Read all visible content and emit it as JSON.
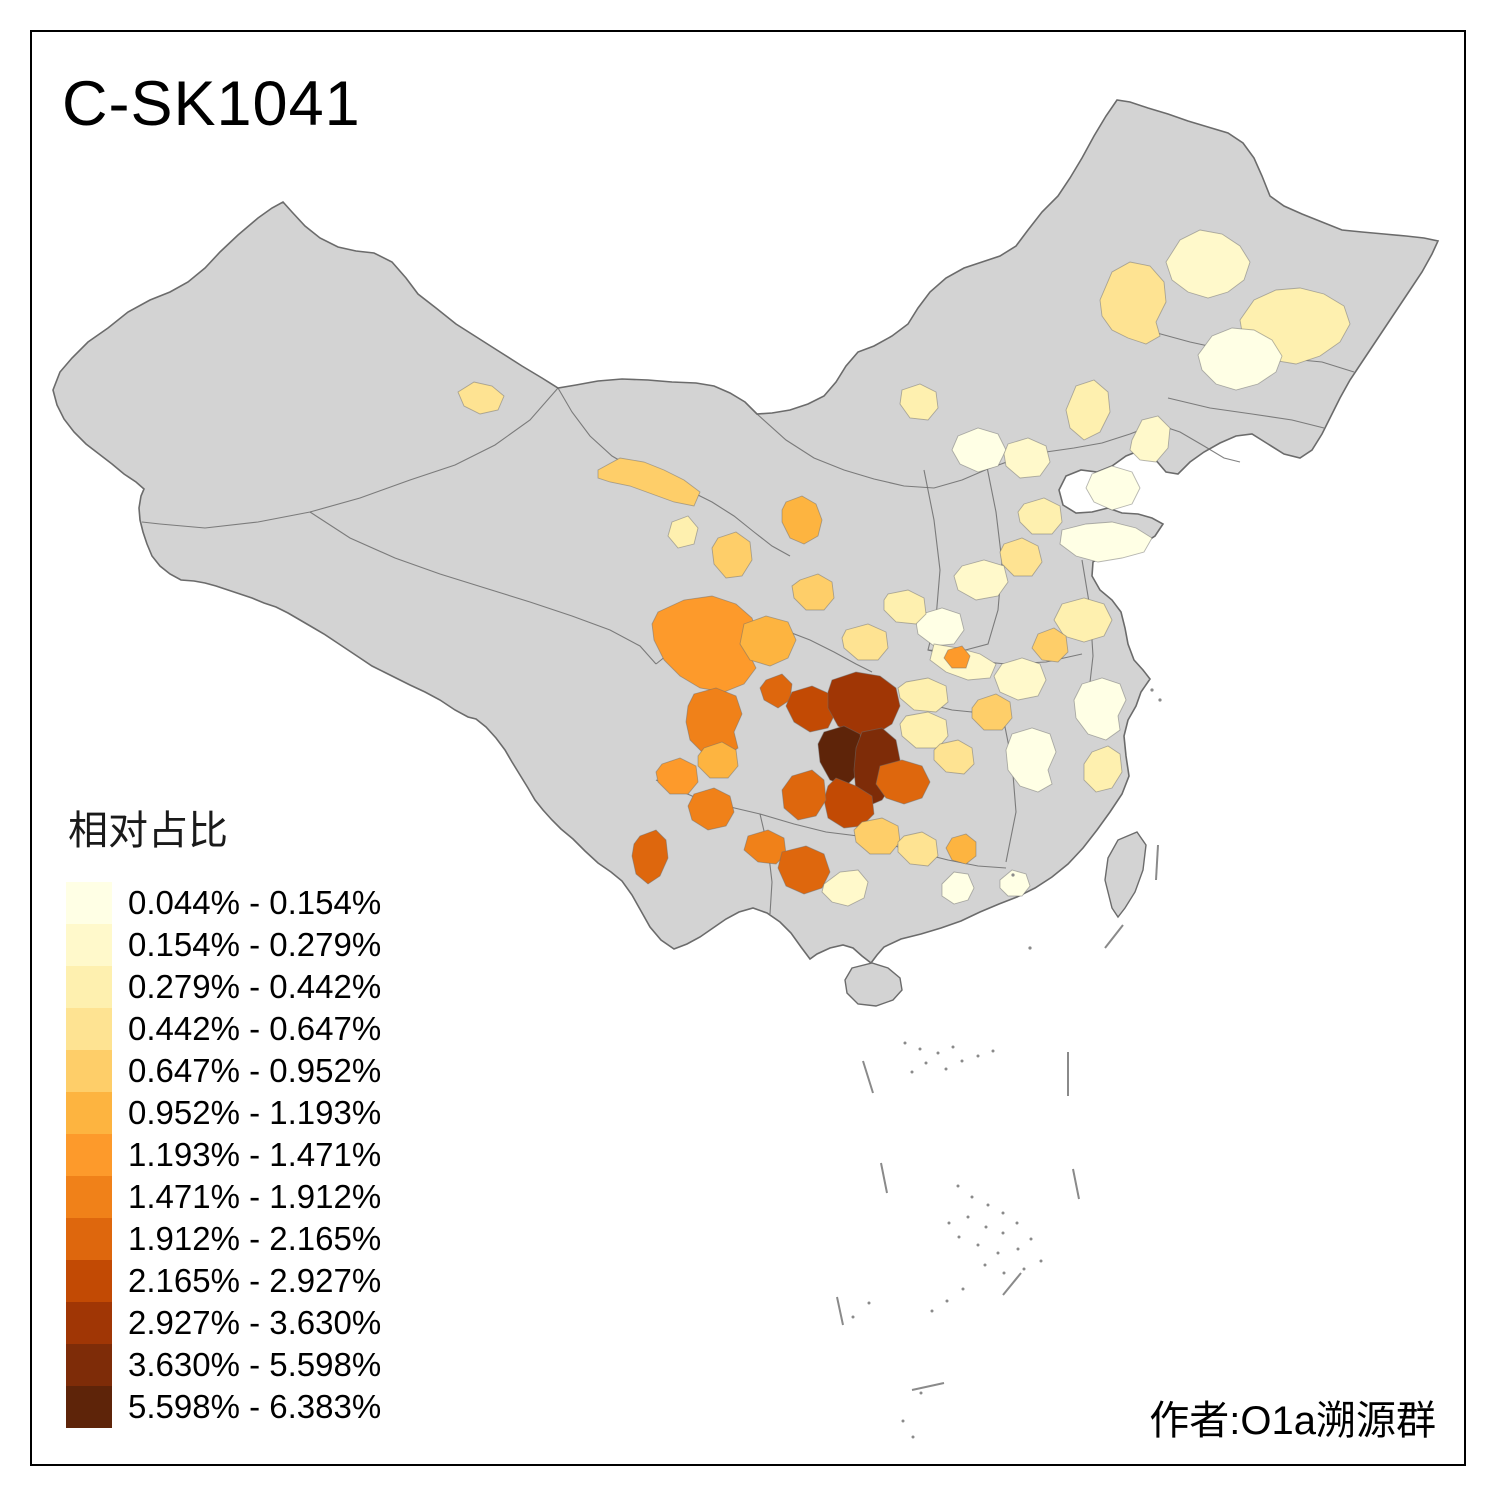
{
  "frame": {
    "title": "C-SK1041",
    "attribution": "作者:O1a溯源群"
  },
  "legend": {
    "title": "相对占比",
    "items": [
      {
        "label": "0.044% - 0.154%",
        "color": "#FFFFE5"
      },
      {
        "label": "0.154% - 0.279%",
        "color": "#FFF9CB"
      },
      {
        "label": "0.279% - 0.442%",
        "color": "#FEF0AF"
      },
      {
        "label": "0.442% - 0.647%",
        "color": "#FEE392"
      },
      {
        "label": "0.647% - 0.952%",
        "color": "#FECE69"
      },
      {
        "label": "0.952% - 1.193%",
        "color": "#FDB440"
      },
      {
        "label": "1.193% - 1.471%",
        "color": "#FD9A2B"
      },
      {
        "label": "1.471% - 1.912%",
        "color": "#F08119"
      },
      {
        "label": "1.912% - 2.165%",
        "color": "#DE670D"
      },
      {
        "label": "2.165% - 2.927%",
        "color": "#C24A04"
      },
      {
        "label": "2.927% - 3.630%",
        "color": "#A03605"
      },
      {
        "label": "3.630% - 5.598%",
        "color": "#7E2C08"
      },
      {
        "label": "5.598% - 6.383%",
        "color": "#5E2409"
      }
    ]
  },
  "map": {
    "base_fill": "#D3D3D3",
    "border_color": "#6B6B6B",
    "sea_feature_color": "#8A8A8A",
    "frame_color": "#000000",
    "background": "#FFFFFF"
  }
}
